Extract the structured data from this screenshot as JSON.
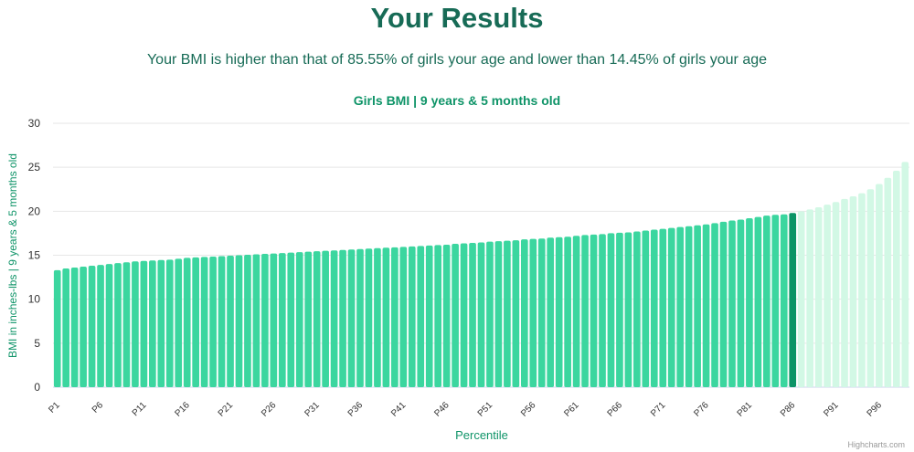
{
  "page": {
    "title": "Your Results",
    "subtitle": "Your BMI is higher than that of 85.55% of girls your age and lower than 14.45% of girls your age"
  },
  "colors": {
    "bar_below": "#3bd69f",
    "bar_highlight": "#0b9466",
    "bar_above": "#d2f8e5",
    "heading": "#176b56",
    "chart_title": "#0f9468",
    "grid": "#e6e6e6",
    "axis_text": "#333333"
  },
  "chart_data": {
    "type": "bar",
    "title": "Girls BMI | 9 years & 5 months old",
    "xlabel": "Percentile",
    "ylabel": "BMI in inches-lbs | 9 years & 5 months old",
    "ylim": [
      0,
      30
    ],
    "yticks": [
      0,
      5,
      10,
      15,
      20,
      25,
      30
    ],
    "grid": true,
    "highlight_category": "P86",
    "categories": [
      "P1",
      "P2",
      "P3",
      "P4",
      "P5",
      "P6",
      "P7",
      "P8",
      "P9",
      "P10",
      "P11",
      "P12",
      "P13",
      "P14",
      "P15",
      "P16",
      "P17",
      "P18",
      "P19",
      "P20",
      "P21",
      "P22",
      "P23",
      "P24",
      "P25",
      "P26",
      "P27",
      "P28",
      "P29",
      "P30",
      "P31",
      "P32",
      "P33",
      "P34",
      "P35",
      "P36",
      "P37",
      "P38",
      "P39",
      "P40",
      "P41",
      "P42",
      "P43",
      "P44",
      "P45",
      "P46",
      "P47",
      "P48",
      "P49",
      "P50",
      "P51",
      "P52",
      "P53",
      "P54",
      "P55",
      "P56",
      "P57",
      "P58",
      "P59",
      "P60",
      "P61",
      "P62",
      "P63",
      "P64",
      "P65",
      "P66",
      "P67",
      "P68",
      "P69",
      "P70",
      "P71",
      "P72",
      "P73",
      "P74",
      "P75",
      "P76",
      "P77",
      "P78",
      "P79",
      "P80",
      "P81",
      "P82",
      "P83",
      "P84",
      "P85",
      "P86",
      "P87",
      "P88",
      "P89",
      "P90",
      "P91",
      "P92",
      "P93",
      "P94",
      "P95",
      "P96",
      "P97",
      "P98",
      "P99"
    ],
    "xtick_labels": [
      "P1",
      "P6",
      "P11",
      "P16",
      "P21",
      "P26",
      "P31",
      "P36",
      "P41",
      "P46",
      "P51",
      "P56",
      "P61",
      "P66",
      "P71",
      "P76",
      "P81",
      "P86",
      "P91",
      "P96"
    ],
    "values": [
      13.3,
      13.5,
      13.6,
      13.7,
      13.8,
      13.9,
      14.0,
      14.1,
      14.2,
      14.3,
      14.35,
      14.4,
      14.45,
      14.5,
      14.6,
      14.7,
      14.75,
      14.8,
      14.85,
      14.9,
      14.95,
      15.0,
      15.05,
      15.1,
      15.15,
      15.2,
      15.25,
      15.3,
      15.35,
      15.4,
      15.45,
      15.5,
      15.55,
      15.6,
      15.65,
      15.7,
      15.75,
      15.8,
      15.85,
      15.9,
      15.95,
      16.0,
      16.05,
      16.1,
      16.15,
      16.2,
      16.3,
      16.35,
      16.4,
      16.45,
      16.55,
      16.6,
      16.65,
      16.7,
      16.8,
      16.85,
      16.9,
      17.0,
      17.05,
      17.1,
      17.2,
      17.3,
      17.35,
      17.4,
      17.5,
      17.55,
      17.6,
      17.7,
      17.8,
      17.9,
      18.0,
      18.1,
      18.2,
      18.3,
      18.4,
      18.5,
      18.65,
      18.8,
      18.95,
      19.05,
      19.2,
      19.35,
      19.5,
      19.6,
      19.65,
      19.8,
      20.0,
      20.2,
      20.45,
      20.75,
      21.05,
      21.4,
      21.7,
      22.05,
      22.5,
      23.1,
      23.8,
      24.6,
      25.6
    ]
  },
  "credits": "Highcharts.com"
}
